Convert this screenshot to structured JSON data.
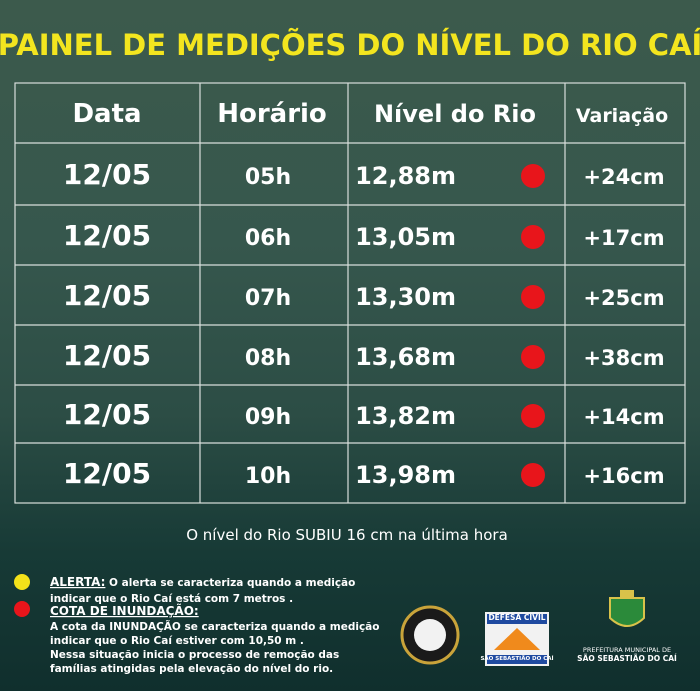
{
  "header": {
    "title": "PAINEL DE MEDIÇÕES DO NÍVEL DO RIO CAÍ"
  },
  "table": {
    "columns": [
      "Data",
      "Horário",
      "Nível do Rio",
      "Variação"
    ],
    "rows": [
      [
        "12/05",
        "05h",
        "12,88m",
        "+24cm"
      ],
      [
        "12/05",
        "06h",
        "13,05m",
        "+17cm"
      ],
      [
        "12/05",
        "07h",
        "13,30m",
        "+25cm"
      ],
      [
        "12/05",
        "08h",
        "13,68m",
        "+38cm"
      ],
      [
        "12/05",
        "09h",
        "13,82m",
        "+14cm"
      ],
      [
        "12/05",
        "10h",
        "13,98m",
        "+16cm"
      ]
    ]
  },
  "note": "O nível do Rio  SUBIU 16 cm na última hora",
  "legend": {
    "alert": {
      "title": "ALERTA:",
      "lines": [
        " O alerta se caracteriza quando a  medição",
        "indicar que o Rio Caí está com  7 metros ."
      ]
    },
    "flood": {
      "title": "COTA DE INUNDAÇÃO:",
      "lines": [
        "A cota da INUNDAÇÃO se caracteriza quando a medição",
        "indicar que o Rio Caí estiver com 10,50 m .",
        "Nessa situação inicia o processo de remoção das",
        "famílias atingidas pela elevação do nível do rio."
      ]
    }
  },
  "logos": {
    "civil_defense": {
      "name": "DEFESA CIVIL",
      "city": "SÃO SEBASTIÃO DO CAÍ"
    },
    "city_hall": {
      "line1": "PREFEITURA MUNICIPAL DE",
      "line2": "SÃO SEBASTIÃO DO CAÍ"
    }
  }
}
